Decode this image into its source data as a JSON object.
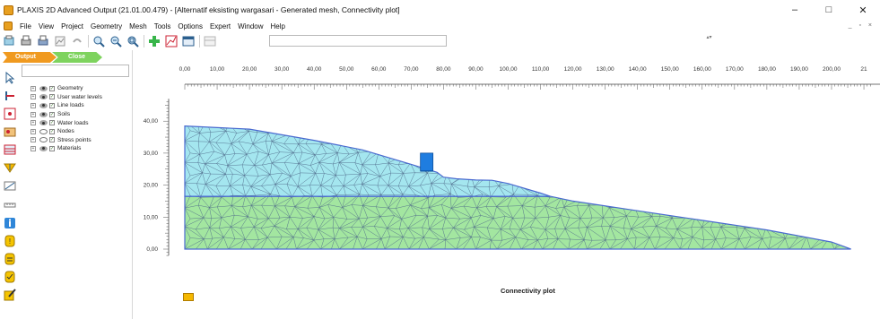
{
  "window": {
    "title": "PLAXIS 2D Advanced Output (21.01.00.479) - [Alternatif eksisting wargasari - Generated mesh, Connectivity plot]",
    "minimize_glyph": "–",
    "maximize_glyph": "□",
    "close_glyph": "✕"
  },
  "menu": {
    "items": [
      "File",
      "View",
      "Project",
      "Geometry",
      "Mesh",
      "Tools",
      "Options",
      "Expert",
      "Window",
      "Help"
    ],
    "mdi_controls": "_ ▫ ×"
  },
  "toolbar": {
    "icons": [
      "print-preview-icon",
      "print-icon",
      "save-icon",
      "copy-icon",
      "undo-icon",
      "zoom-in-icon",
      "zoom-out-icon",
      "reset-view-icon",
      "add-plot-icon",
      "chart-icon",
      "table-icon",
      "table-disabled-icon"
    ],
    "step_value": "",
    "spin_glyph": "▴▾"
  },
  "mode_tabs": {
    "output": "Output",
    "close": "Close"
  },
  "explorer": {
    "search_value": "",
    "items": [
      {
        "label": "Geometry",
        "visible": true,
        "checked": true
      },
      {
        "label": "User water levels",
        "visible": true,
        "checked": true
      },
      {
        "label": "Line loads",
        "visible": true,
        "checked": true
      },
      {
        "label": "Soils",
        "visible": true,
        "checked": true
      },
      {
        "label": "Water loads",
        "visible": true,
        "checked": true
      },
      {
        "label": "Nodes",
        "visible": false,
        "checked": true
      },
      {
        "label": "Stress points",
        "visible": false,
        "checked": true
      },
      {
        "label": "Materials",
        "visible": true,
        "checked": true
      }
    ]
  },
  "plot": {
    "title": "Connectivity plot",
    "x_ticks": [
      "0,00",
      "10,00",
      "20,00",
      "30,00",
      "40,00",
      "50,00",
      "60,00",
      "70,00",
      "80,00",
      "90,00",
      "100,00",
      "110,00",
      "120,00",
      "130,00",
      "140,00",
      "150,00",
      "160,00",
      "170,00",
      "180,00",
      "190,00",
      "200,00",
      "21"
    ],
    "y_ticks": [
      "40,00",
      "30,00",
      "20,00",
      "10,00",
      "0,00"
    ],
    "colors": {
      "upper_soil": "#a4e6ef",
      "lower_soil": "#a3e6a0",
      "outline": "#4a6ad0",
      "mesh": "#4f6a8a",
      "load": "#1f7de0"
    },
    "model": {
      "upper_soil_boundary": [
        [
          0,
          38.5
        ],
        [
          20,
          37.5
        ],
        [
          40,
          34
        ],
        [
          55,
          31
        ],
        [
          70,
          26.5
        ],
        [
          78,
          24
        ],
        [
          80,
          22.5
        ],
        [
          84,
          22
        ],
        [
          90,
          21.6
        ],
        [
          95,
          21.5
        ],
        [
          100,
          20.5
        ],
        [
          110,
          17.5
        ],
        [
          113,
          16.5
        ],
        [
          0,
          16.5
        ]
      ],
      "lower_soil_boundary": [
        [
          0,
          16.5
        ],
        [
          113,
          16.5
        ],
        [
          120,
          15
        ],
        [
          140,
          12
        ],
        [
          160,
          9
        ],
        [
          180,
          6
        ],
        [
          200,
          2.2
        ],
        [
          206,
          0
        ],
        [
          0,
          0
        ]
      ],
      "line_load": {
        "x": 74.8,
        "y": 24.4
      }
    }
  }
}
